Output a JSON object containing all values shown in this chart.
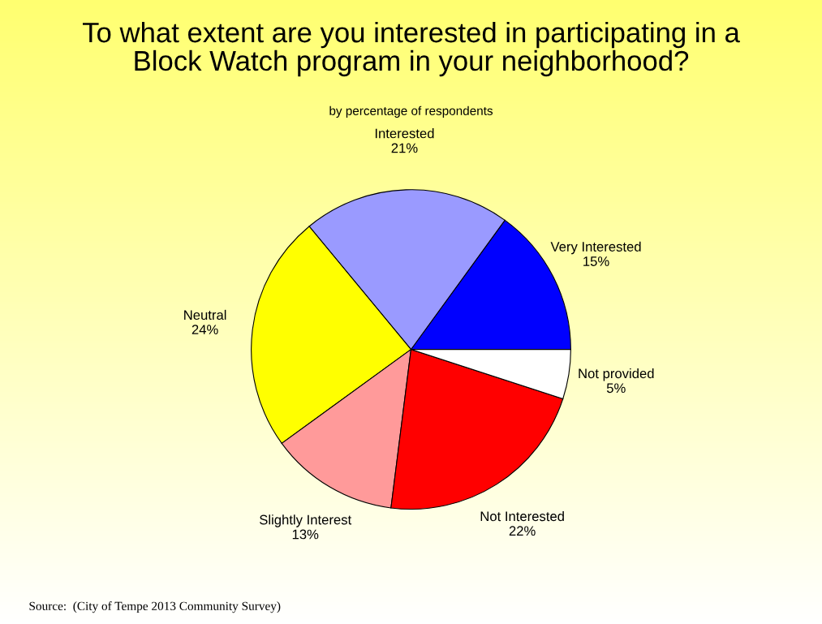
{
  "chart_data": {
    "type": "pie",
    "title": "To what extent are you interested in participating in a\nBlock Watch program in your neighborhood?",
    "subtitle": "by percentage of respondents",
    "categories": [
      "Very Interested",
      "Interested",
      "Neutral",
      "Slightly Interest",
      "Not Interested",
      "Not provided"
    ],
    "values": [
      15,
      21,
      24,
      13,
      22,
      5
    ],
    "value_labels": [
      "15%",
      "21%",
      "24%",
      "13%",
      "22%",
      "5%"
    ],
    "colors": [
      "#0000ff",
      "#9a9aff",
      "#ffff00",
      "#ff9a9a",
      "#ff0000",
      "#ffffff"
    ],
    "annotations": [
      "Source:  (City of Tempe 2013 Community Survey)"
    ],
    "legend": false
  }
}
